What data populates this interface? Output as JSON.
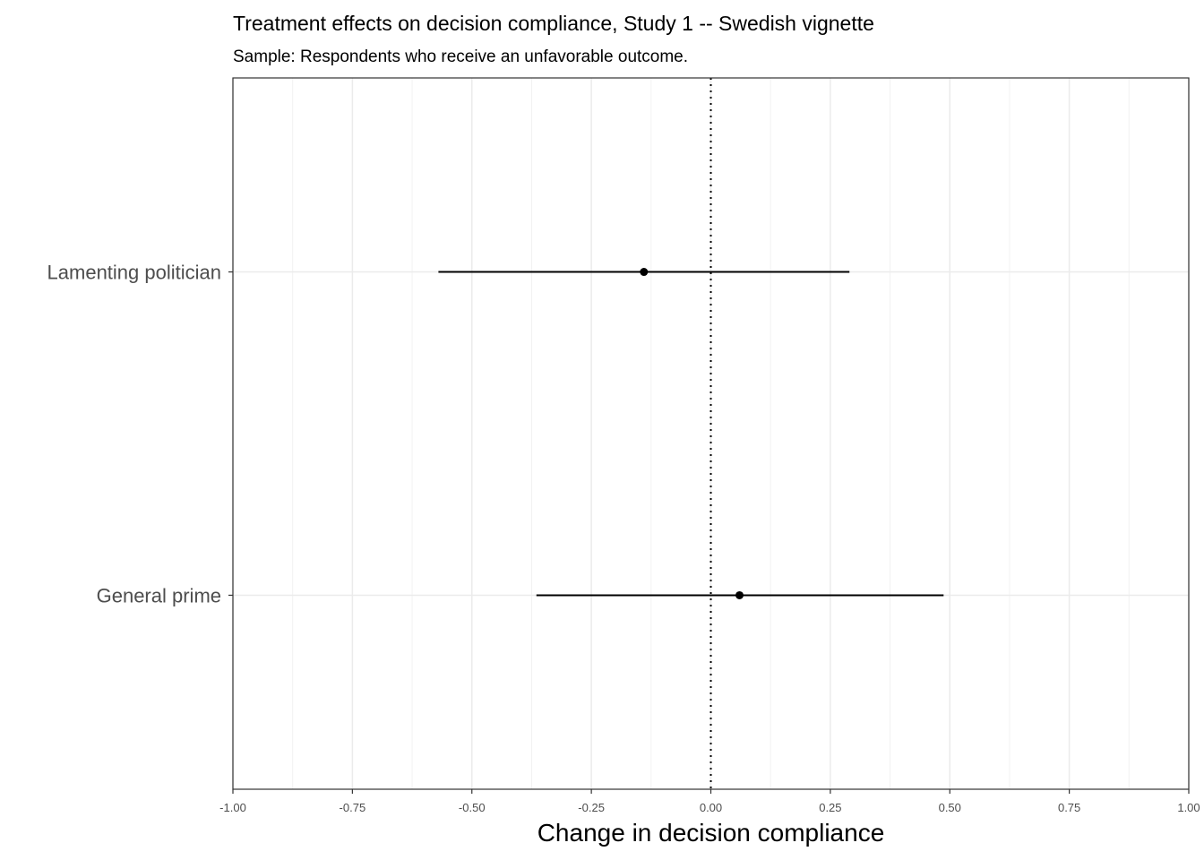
{
  "chart_data": {
    "type": "scatter",
    "title": "Treatment effects on decision compliance, Study 1 -- Swedish vignette",
    "subtitle": "Sample: Respondents who receive an unfavorable outcome.",
    "xlabel": "Change in decision compliance",
    "ylabel": "",
    "xlim": [
      -1.0,
      1.0
    ],
    "x_ticks": [
      -1.0,
      -0.75,
      -0.5,
      -0.25,
      0.0,
      0.25,
      0.5,
      0.75,
      1.0
    ],
    "x_tick_labels": [
      "-1.00",
      "-0.75",
      "-0.50",
      "-0.25",
      "0.00",
      "0.25",
      "0.50",
      "0.75",
      "1.00"
    ],
    "x_minor_ticks": [
      -0.875,
      -0.625,
      -0.375,
      -0.125,
      0.125,
      0.375,
      0.625,
      0.875
    ],
    "reference_line": {
      "x": 0.0,
      "style": "dotted"
    },
    "categories": [
      "General prime",
      "Lamenting politician"
    ],
    "points": [
      {
        "label": "General prime",
        "estimate": 0.06,
        "ci_low": -0.365,
        "ci_high": 0.487
      },
      {
        "label": "Lamenting politician",
        "estimate": -0.14,
        "ci_low": -0.57,
        "ci_high": 0.29
      }
    ],
    "grid": true,
    "legend": "none"
  }
}
